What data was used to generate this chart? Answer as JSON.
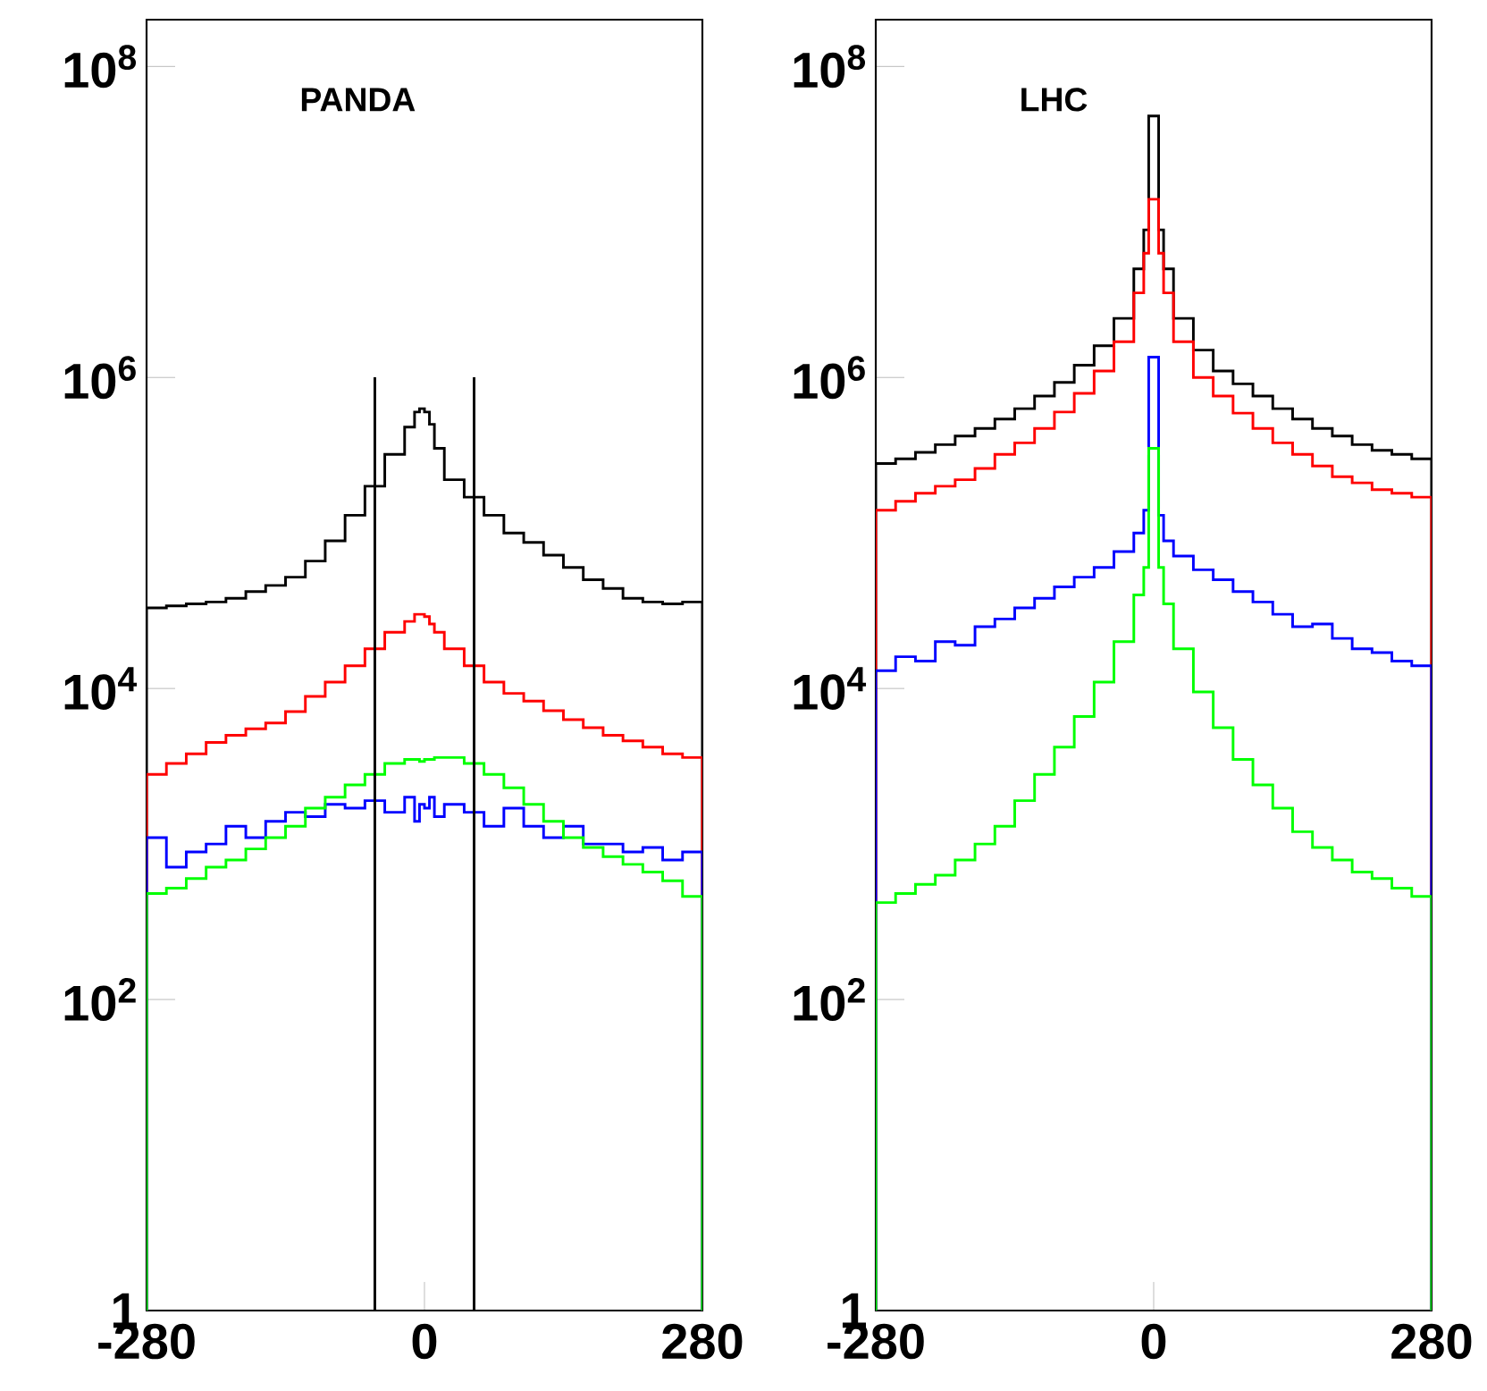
{
  "chart_data": [
    {
      "type": "histogram",
      "title": "PANDA",
      "log": true,
      "bins": [
        -280,
        -260,
        -240,
        -220,
        -200,
        -180,
        -160,
        -140,
        -120,
        -100,
        -80,
        -60,
        -40,
        -20,
        -10,
        -5,
        0,
        5,
        10,
        20,
        40,
        60,
        80,
        100,
        120,
        140,
        160,
        180,
        200,
        220,
        240,
        260,
        280
      ],
      "series": [
        {
          "color": "#000000",
          "values": [
            33000,
            34000,
            35000,
            36000,
            38000,
            42000,
            46000,
            52000,
            66000,
            89000,
            130000,
            200000,
            320000,
            480000,
            600000,
            630000,
            600000,
            500000,
            350000,
            220000,
            170000,
            130000,
            100000,
            87000,
            72000,
            60000,
            50000,
            44000,
            38000,
            36000,
            35000,
            36000
          ]
        },
        {
          "color": "#ff0000",
          "values": [
            2800,
            3300,
            3800,
            4500,
            5000,
            5500,
            6000,
            7100,
            8900,
            11000,
            14000,
            18000,
            23000,
            27000,
            30000,
            30000,
            29000,
            26000,
            23000,
            18000,
            14000,
            11000,
            9300,
            8300,
            7200,
            6300,
            5600,
            5000,
            4600,
            4200,
            3800,
            3600
          ]
        },
        {
          "color": "#0000ff",
          "values": [
            1100,
            710,
            890,
            1000,
            1300,
            1100,
            1400,
            1600,
            1500,
            1800,
            1700,
            1900,
            1600,
            2000,
            1400,
            1800,
            1700,
            2000,
            1500,
            1800,
            1600,
            1300,
            1700,
            1300,
            1100,
            1300,
            1000,
            1000,
            890,
            950,
            790,
            890
          ]
        },
        {
          "color": "#00ff00",
          "values": [
            480,
            520,
            600,
            710,
            790,
            930,
            1100,
            1300,
            1700,
            2000,
            2400,
            2800,
            3300,
            3500,
            3500,
            3400,
            3500,
            3500,
            3600,
            3600,
            3300,
            2800,
            2300,
            1800,
            1400,
            1100,
            950,
            830,
            740,
            660,
            580,
            460
          ]
        }
      ],
      "xlim": [
        -280,
        280
      ],
      "xticks": [
        -280,
        0,
        280
      ],
      "ylim": [
        1,
        200000000
      ],
      "yticks": [
        {
          "value": 1,
          "label": "1"
        },
        {
          "value": 100,
          "label": "10$^{2}$"
        },
        {
          "value": 10000,
          "label": "10$^{4}$"
        },
        {
          "value": 1000000,
          "label": "10$^{6}$"
        },
        {
          "value": 100000000,
          "label": "10$^{8}$"
        }
      ],
      "ref_lines": [
        {
          "axis": "x",
          "value": -50,
          "color": "#000000"
        },
        {
          "axis": "x",
          "value": 50,
          "color": "#000000"
        }
      ]
    },
    {
      "type": "histogram",
      "title": "LHC",
      "log": true,
      "bins": [
        -280,
        -260,
        -240,
        -220,
        -200,
        -180,
        -160,
        -140,
        -120,
        -100,
        -80,
        -60,
        -40,
        -20,
        -10,
        -5,
        0,
        5,
        10,
        20,
        40,
        60,
        80,
        100,
        120,
        140,
        160,
        180,
        200,
        220,
        240,
        260,
        280
      ],
      "series": [
        {
          "color": "#000000",
          "values": [
            280000,
            300000,
            330000,
            370000,
            420000,
            470000,
            540000,
            630000,
            760000,
            930000,
            1200000,
            1600000,
            2400000,
            5000000,
            8900000,
            48000000,
            48000000,
            8900000,
            5000000,
            2400000,
            1500000,
            1100000,
            910000,
            760000,
            630000,
            540000,
            470000,
            420000,
            370000,
            340000,
            320000,
            300000
          ]
        },
        {
          "color": "#ff0000",
          "values": [
            140000,
            160000,
            180000,
            200000,
            220000,
            260000,
            320000,
            380000,
            470000,
            600000,
            790000,
            1100000,
            1700000,
            3500000,
            6300000,
            14000000,
            14000000,
            6300000,
            3500000,
            1700000,
            1000000,
            760000,
            590000,
            470000,
            380000,
            320000,
            270000,
            230000,
            210000,
            190000,
            180000,
            170000
          ]
        },
        {
          "color": "#0000ff",
          "values": [
            13000,
            16000,
            15000,
            20000,
            19000,
            25000,
            28000,
            33000,
            38000,
            45000,
            52000,
            60000,
            76000,
            100000,
            140000,
            1350000,
            1350000,
            130000,
            89000,
            71000,
            58000,
            50000,
            42000,
            36000,
            30000,
            25000,
            26000,
            21000,
            18000,
            17000,
            15000,
            14000
          ]
        },
        {
          "color": "#00ff00",
          "values": [
            420,
            480,
            550,
            630,
            790,
            1000,
            1300,
            1900,
            2800,
            4200,
            6600,
            11000,
            20000,
            40000,
            60000,
            350000,
            350000,
            60000,
            35000,
            18000,
            9500,
            5600,
            3500,
            2400,
            1700,
            1200,
            950,
            790,
            660,
            600,
            520,
            460
          ]
        }
      ],
      "xlim": [
        -280,
        280
      ],
      "xticks": [
        -280,
        0,
        280
      ],
      "ylim": [
        1,
        200000000
      ],
      "yticks": [
        {
          "value": 1,
          "label": "1"
        },
        {
          "value": 100,
          "label": "10$^{2}$"
        },
        {
          "value": 10000,
          "label": "10$^{4}$"
        },
        {
          "value": 1000000,
          "label": "10$^{6}$"
        },
        {
          "value": 100000000,
          "label": "10$^{8}$"
        }
      ]
    }
  ]
}
